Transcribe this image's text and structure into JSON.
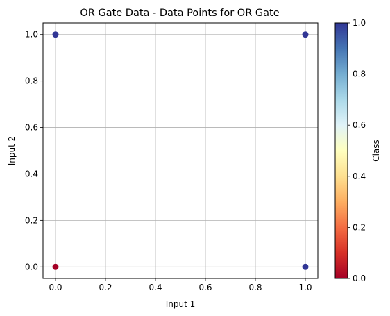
{
  "chart_data": {
    "type": "scatter",
    "title": "OR Gate Data - Data Points for OR Gate",
    "xlabel": "Input 1",
    "ylabel": "Input 2",
    "xlim": [
      -0.05,
      1.05
    ],
    "ylim": [
      -0.05,
      1.05
    ],
    "xticks": [
      0.0,
      0.2,
      0.4,
      0.6,
      0.8,
      1.0
    ],
    "yticks": [
      0.0,
      0.2,
      0.4,
      0.6,
      0.8,
      1.0
    ],
    "xtick_labels": [
      "0.0",
      "0.2",
      "0.4",
      "0.6",
      "0.8",
      "1.0"
    ],
    "ytick_labels": [
      "0.0",
      "0.2",
      "0.4",
      "0.6",
      "0.8",
      "1.0"
    ],
    "grid": true,
    "points": [
      {
        "x": 0,
        "y": 0,
        "class": 0
      },
      {
        "x": 0,
        "y": 1,
        "class": 1
      },
      {
        "x": 1,
        "y": 0,
        "class": 1
      },
      {
        "x": 1,
        "y": 1,
        "class": 1
      }
    ],
    "colorbar": {
      "label": "Class",
      "colormap": "RdYlBu",
      "range": [
        0.0,
        1.0
      ],
      "ticks": [
        0.0,
        0.2,
        0.4,
        0.6,
        0.8,
        1.0
      ],
      "tick_labels": [
        "0.0",
        "0.2",
        "0.4",
        "0.6",
        "0.8",
        "1.0"
      ],
      "stops": [
        "#a50026",
        "#d73027",
        "#f46d43",
        "#fdae61",
        "#fee090",
        "#ffffbf",
        "#e0f3f8",
        "#abd9e9",
        "#74add1",
        "#4575b4",
        "#313695"
      ]
    }
  }
}
